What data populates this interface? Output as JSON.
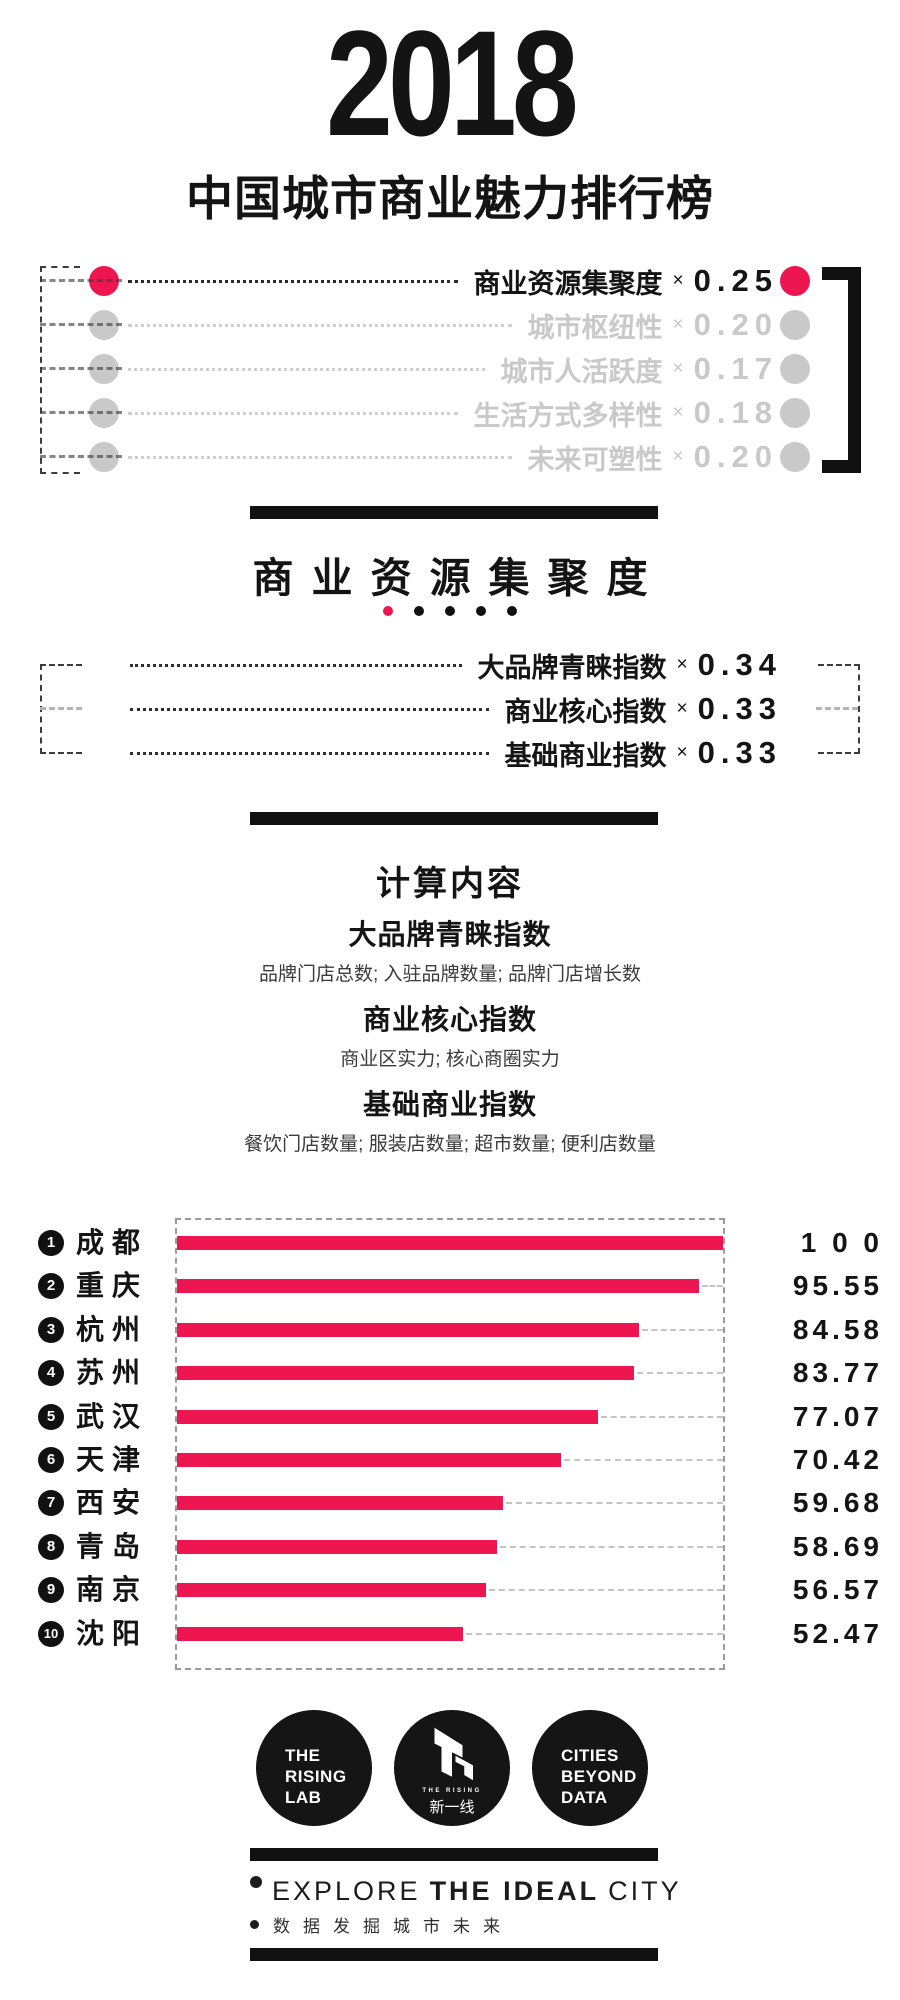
{
  "colors": {
    "accent": "#ED1651",
    "inactive_gray": "#C9C9C9",
    "ink": "#141414",
    "bar_leader_gray": "#C4C4C4"
  },
  "header": {
    "year": "2018",
    "title": "中国城市商业魅力排行榜"
  },
  "weights_legend": {
    "multiply_sign": "×",
    "items": [
      {
        "label": "商业资源集聚度",
        "weight": "0.25",
        "active": true
      },
      {
        "label": "城市枢纽性",
        "weight": "0.20",
        "active": false
      },
      {
        "label": "城市人活跃度",
        "weight": "0.17",
        "active": false
      },
      {
        "label": "生活方式多样性",
        "weight": "0.18",
        "active": false
      },
      {
        "label": "未来可塑性",
        "weight": "0.20",
        "active": false
      }
    ]
  },
  "section": {
    "title": "商业资源集聚度",
    "page_dot_count": 5,
    "active_dot_index": 0,
    "multiply_sign": "×",
    "sub_indices": [
      {
        "label": "大品牌青睐指数",
        "weight": "0.34"
      },
      {
        "label": "商业核心指数",
        "weight": "0.33"
      },
      {
        "label": "基础商业指数",
        "weight": "0.33"
      }
    ]
  },
  "calculation": {
    "title": "计算内容",
    "groups": [
      {
        "name": "大品牌青睐指数",
        "desc": "品牌门店总数; 入驻品牌数量; 品牌门店增长数"
      },
      {
        "name": "商业核心指数",
        "desc": "商业区实力; 核心商圈实力"
      },
      {
        "name": "基础商业指数",
        "desc": "餐饮门店数量; 服装店数量; 超市数量; 便利店数量"
      }
    ]
  },
  "chart_data": {
    "type": "bar",
    "orientation": "horizontal",
    "title": "商业资源集聚度 city ranking",
    "xlim": [
      0,
      100
    ],
    "grid": false,
    "bar_color": "#ED1651",
    "categories": [
      "成都",
      "重庆",
      "杭州",
      "苏州",
      "武汉",
      "天津",
      "西安",
      "青岛",
      "南京",
      "沈阳"
    ],
    "ranks": [
      "1",
      "2",
      "3",
      "4",
      "5",
      "6",
      "7",
      "8",
      "9",
      "10"
    ],
    "values": [
      100,
      95.55,
      84.58,
      83.77,
      77.07,
      70.42,
      59.68,
      58.69,
      56.57,
      52.47
    ],
    "value_labels": [
      "1 0 0",
      "95.55",
      "84.58",
      "83.77",
      "77.07",
      "70.42",
      "59.68",
      "58.69",
      "56.57",
      "52.47"
    ]
  },
  "footer": {
    "logos": [
      {
        "lines": [
          "THE",
          "RISING",
          "LAB"
        ]
      },
      {
        "micro": "THE RISING",
        "brand": "新一线"
      },
      {
        "lines": [
          "CITIES",
          "BEYOND",
          "DATA"
        ]
      }
    ],
    "explore": {
      "pre": "EXPLORE",
      "bold": "THE IDEAL",
      "post": "CITY"
    },
    "tagline_cn": "数据发掘城市未来"
  }
}
